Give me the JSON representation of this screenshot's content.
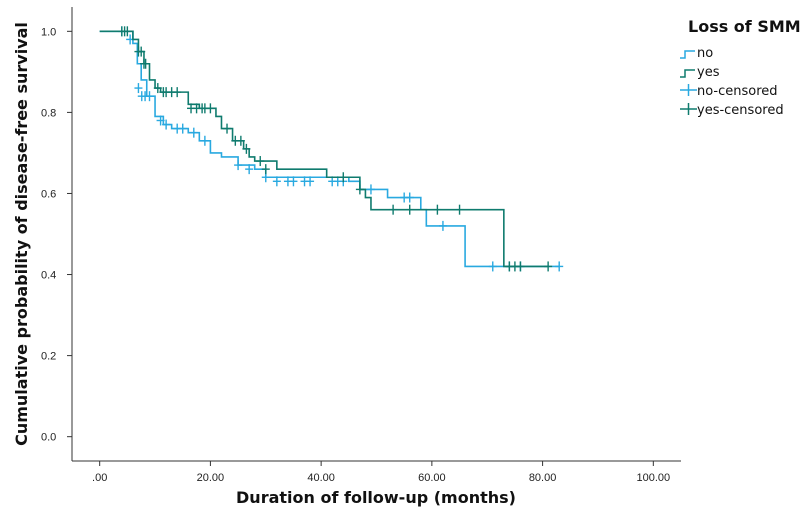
{
  "chart_data": {
    "type": "line",
    "subtype": "kaplan-meier step",
    "xlabel": "Duration of follow-up (months)",
    "ylabel": "Cumulative probability of disease-free survival",
    "xlim": [
      -5,
      105
    ],
    "ylim": [
      -0.06,
      1.06
    ],
    "x_ticks": [
      0,
      20,
      40,
      60,
      80,
      100
    ],
    "x_tick_labels": [
      ".00",
      "20.00",
      "40.00",
      "60.00",
      "80.00",
      "100.00"
    ],
    "y_ticks": [
      0,
      0.2,
      0.4,
      0.6,
      0.8,
      1.0
    ],
    "y_tick_labels": [
      "0.0",
      "0.2",
      "0.4",
      "0.6",
      "0.8",
      "1.0"
    ],
    "grid": false,
    "legend": {
      "title": "Loss of SMM",
      "placement": "top-right, outside plot",
      "entries": [
        "no",
        "yes",
        "no-censored",
        "yes-censored"
      ]
    },
    "series": [
      {
        "name": "no",
        "color": "#29a9e0",
        "steps": [
          [
            0,
            1.0
          ],
          [
            6,
            0.97
          ],
          [
            6.8,
            0.92
          ],
          [
            7.5,
            0.88
          ],
          [
            8.5,
            0.84
          ],
          [
            10,
            0.79
          ],
          [
            11.5,
            0.77
          ],
          [
            13,
            0.76
          ],
          [
            16,
            0.75
          ],
          [
            18,
            0.73
          ],
          [
            20,
            0.7
          ],
          [
            22,
            0.69
          ],
          [
            25,
            0.67
          ],
          [
            28,
            0.66
          ],
          [
            30,
            0.64
          ],
          [
            45,
            0.63
          ],
          [
            47,
            0.61
          ],
          [
            52,
            0.59
          ],
          [
            58,
            0.56
          ],
          [
            59,
            0.52
          ],
          [
            66,
            0.42
          ],
          [
            83,
            0.42
          ]
        ],
        "censored": [
          [
            4,
            1.0
          ],
          [
            5.5,
            0.98
          ],
          [
            7,
            0.86
          ],
          [
            7.6,
            0.84
          ],
          [
            8.2,
            0.84
          ],
          [
            9,
            0.84
          ],
          [
            11,
            0.78
          ],
          [
            12,
            0.77
          ],
          [
            14,
            0.76
          ],
          [
            15,
            0.76
          ],
          [
            17,
            0.75
          ],
          [
            19,
            0.73
          ],
          [
            25,
            0.67
          ],
          [
            27,
            0.66
          ],
          [
            30,
            0.64
          ],
          [
            32,
            0.63
          ],
          [
            34,
            0.63
          ],
          [
            35,
            0.63
          ],
          [
            37,
            0.63
          ],
          [
            38,
            0.63
          ],
          [
            42,
            0.63
          ],
          [
            43,
            0.63
          ],
          [
            44,
            0.63
          ],
          [
            49,
            0.61
          ],
          [
            55,
            0.59
          ],
          [
            56,
            0.59
          ],
          [
            62,
            0.52
          ],
          [
            71,
            0.42
          ],
          [
            74,
            0.42
          ],
          [
            76,
            0.42
          ],
          [
            83,
            0.42
          ]
        ]
      },
      {
        "name": "yes",
        "color": "#0f7b6e",
        "steps": [
          [
            0,
            1.0
          ],
          [
            6,
            0.98
          ],
          [
            7,
            0.95
          ],
          [
            8,
            0.92
          ],
          [
            9,
            0.88
          ],
          [
            10,
            0.86
          ],
          [
            11,
            0.85
          ],
          [
            16,
            0.82
          ],
          [
            18,
            0.81
          ],
          [
            21,
            0.79
          ],
          [
            22,
            0.76
          ],
          [
            24,
            0.73
          ],
          [
            26,
            0.71
          ],
          [
            27,
            0.69
          ],
          [
            28,
            0.68
          ],
          [
            32,
            0.66
          ],
          [
            41,
            0.64
          ],
          [
            47,
            0.61
          ],
          [
            48,
            0.59
          ],
          [
            49,
            0.56
          ],
          [
            73,
            0.42
          ],
          [
            81,
            0.42
          ]
        ],
        "censored": [
          [
            4,
            1.0
          ],
          [
            4.5,
            1.0
          ],
          [
            5,
            1.0
          ],
          [
            7,
            0.95
          ],
          [
            7.5,
            0.95
          ],
          [
            8,
            0.92
          ],
          [
            8.3,
            0.92
          ],
          [
            10.5,
            0.86
          ],
          [
            11.5,
            0.85
          ],
          [
            12,
            0.85
          ],
          [
            13,
            0.85
          ],
          [
            14,
            0.85
          ],
          [
            16.5,
            0.81
          ],
          [
            17.5,
            0.81
          ],
          [
            18.5,
            0.81
          ],
          [
            19,
            0.81
          ],
          [
            20,
            0.81
          ],
          [
            23,
            0.76
          ],
          [
            24.5,
            0.73
          ],
          [
            25.5,
            0.73
          ],
          [
            26.5,
            0.71
          ],
          [
            29,
            0.68
          ],
          [
            30,
            0.66
          ],
          [
            44,
            0.64
          ],
          [
            47,
            0.61
          ],
          [
            53,
            0.56
          ],
          [
            56,
            0.56
          ],
          [
            61,
            0.56
          ],
          [
            65,
            0.56
          ],
          [
            74,
            0.42
          ],
          [
            75,
            0.42
          ],
          [
            76,
            0.42
          ],
          [
            81,
            0.42
          ]
        ]
      }
    ]
  }
}
